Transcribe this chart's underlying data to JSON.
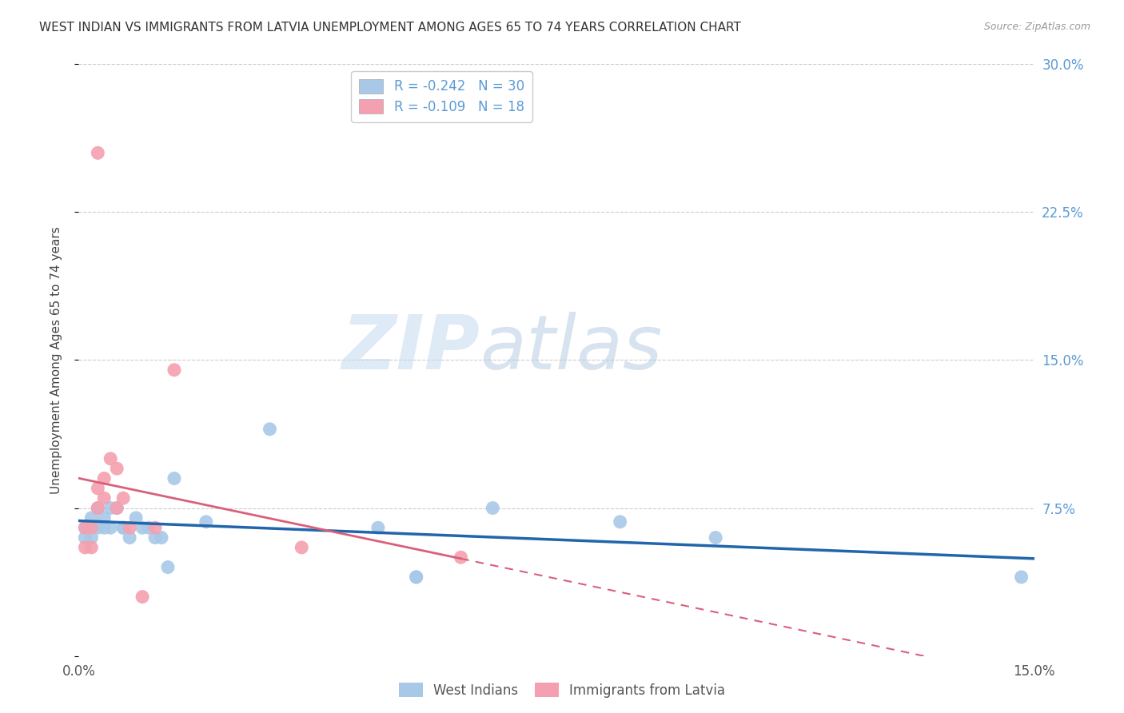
{
  "title": "WEST INDIAN VS IMMIGRANTS FROM LATVIA UNEMPLOYMENT AMONG AGES 65 TO 74 YEARS CORRELATION CHART",
  "source": "Source: ZipAtlas.com",
  "ylabel": "Unemployment Among Ages 65 to 74 years",
  "xlim": [
    0.0,
    0.15
  ],
  "ylim": [
    0.0,
    0.3
  ],
  "yticks_right": [
    0.0,
    0.075,
    0.15,
    0.225,
    0.3
  ],
  "ytick_labels_right": [
    "",
    "7.5%",
    "15.0%",
    "22.5%",
    "30.0%"
  ],
  "watermark_zip": "ZIP",
  "watermark_atlas": "atlas",
  "legend_r1": "R = -0.242",
  "legend_n1": "N = 30",
  "legend_r2": "R = -0.109",
  "legend_n2": "N = 18",
  "blue_x": [
    0.001,
    0.001,
    0.002,
    0.002,
    0.003,
    0.003,
    0.004,
    0.004,
    0.005,
    0.005,
    0.006,
    0.007,
    0.007,
    0.008,
    0.009,
    0.01,
    0.011,
    0.012,
    0.013,
    0.014,
    0.015,
    0.02,
    0.03,
    0.047,
    0.053,
    0.053,
    0.065,
    0.085,
    0.1,
    0.148
  ],
  "blue_y": [
    0.065,
    0.06,
    0.07,
    0.06,
    0.065,
    0.075,
    0.07,
    0.065,
    0.075,
    0.065,
    0.075,
    0.065,
    0.065,
    0.06,
    0.07,
    0.065,
    0.065,
    0.06,
    0.06,
    0.045,
    0.09,
    0.068,
    0.115,
    0.065,
    0.04,
    0.04,
    0.075,
    0.068,
    0.06,
    0.04
  ],
  "pink_x": [
    0.001,
    0.001,
    0.002,
    0.002,
    0.003,
    0.003,
    0.004,
    0.004,
    0.005,
    0.006,
    0.006,
    0.007,
    0.008,
    0.01,
    0.012,
    0.015,
    0.035,
    0.06
  ],
  "pink_y": [
    0.065,
    0.055,
    0.065,
    0.055,
    0.085,
    0.075,
    0.09,
    0.08,
    0.1,
    0.095,
    0.075,
    0.08,
    0.065,
    0.03,
    0.065,
    0.145,
    0.055,
    0.05
  ],
  "pink_outlier_x": [
    0.003
  ],
  "pink_outlier_y": [
    0.255
  ],
  "pink_outlier2_x": [
    0.006
  ],
  "pink_outlier2_y": [
    0.145
  ],
  "blue_color": "#a8c8e8",
  "pink_color": "#f4a0b0",
  "blue_line_color": "#2166ac",
  "pink_line_color": "#d9607a",
  "background_color": "#ffffff",
  "grid_color": "#cccccc"
}
